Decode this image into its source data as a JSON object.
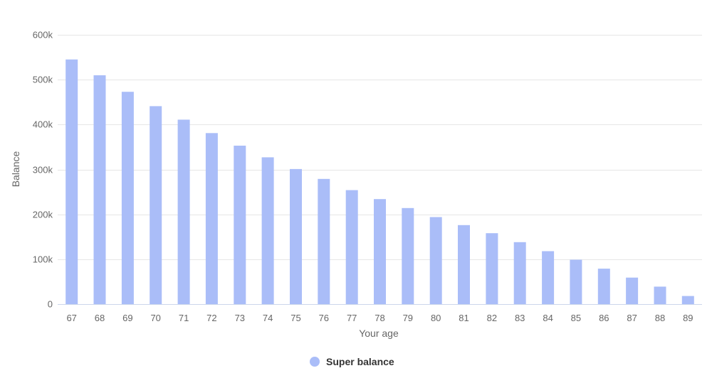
{
  "chart_data": {
    "type": "bar",
    "title": "",
    "xlabel": "Your age",
    "ylabel": "Balance",
    "categories": [
      "67",
      "68",
      "69",
      "70",
      "71",
      "72",
      "73",
      "74",
      "75",
      "76",
      "77",
      "78",
      "79",
      "80",
      "81",
      "82",
      "83",
      "84",
      "85",
      "86",
      "87",
      "88",
      "89"
    ],
    "series": [
      {
        "name": "Super balance",
        "color": "#aabdf8",
        "values": [
          545000,
          510000,
          473000,
          441000,
          411000,
          381000,
          353000,
          327000,
          301000,
          279000,
          254000,
          234000,
          214000,
          194000,
          176000,
          158000,
          138000,
          118000,
          99000,
          79000,
          59000,
          39000,
          18000
        ]
      }
    ],
    "ylim": [
      0,
      600000
    ],
    "yticks": [
      0,
      100000,
      200000,
      300000,
      400000,
      500000,
      600000
    ],
    "ytick_labels": [
      "0",
      "100k",
      "200k",
      "300k",
      "400k",
      "500k",
      "600k"
    ],
    "grid": true,
    "legend_position": "bottom-center"
  }
}
